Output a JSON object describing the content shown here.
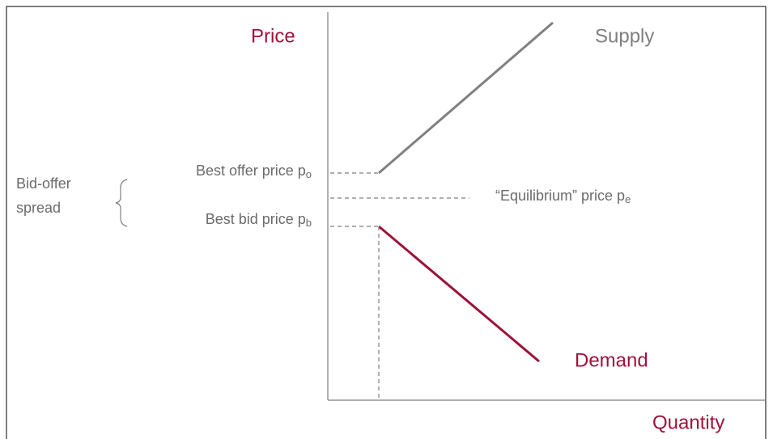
{
  "axes": {
    "y_label": "Price",
    "x_label": "Quantity"
  },
  "curves": {
    "supply": "Supply",
    "demand": "Demand"
  },
  "spread": {
    "line1": "Bid-offer",
    "line2": "spread"
  },
  "prices": {
    "offer": {
      "text": "Best offer price p",
      "sub": "o"
    },
    "equilibrium": {
      "text": "“Equilibrium” price p",
      "sub": "e"
    },
    "bid": {
      "text": "Best bid price p",
      "sub": "b"
    }
  }
}
